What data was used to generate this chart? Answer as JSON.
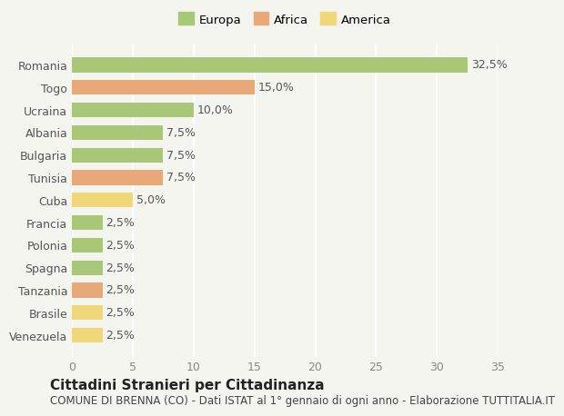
{
  "countries": [
    "Venezuela",
    "Brasile",
    "Tanzania",
    "Spagna",
    "Polonia",
    "Francia",
    "Cuba",
    "Tunisia",
    "Bulgaria",
    "Albania",
    "Ucraina",
    "Togo",
    "Romania"
  ],
  "values": [
    2.5,
    2.5,
    2.5,
    2.5,
    2.5,
    2.5,
    5.0,
    7.5,
    7.5,
    7.5,
    10.0,
    15.0,
    32.5
  ],
  "continents": [
    "America",
    "America",
    "Africa",
    "Europa",
    "Europa",
    "Europa",
    "America",
    "Africa",
    "Europa",
    "Europa",
    "Europa",
    "Africa",
    "Europa"
  ],
  "colors": {
    "Europa": "#a8c878",
    "Africa": "#e8a878",
    "America": "#f0d878"
  },
  "labels": [
    "2,5%",
    "2,5%",
    "2,5%",
    "2,5%",
    "2,5%",
    "2,5%",
    "5,0%",
    "7,5%",
    "7,5%",
    "7,5%",
    "10,0%",
    "15,0%",
    "32,5%"
  ],
  "xlim": [
    0,
    35
  ],
  "xticks": [
    0,
    5,
    10,
    15,
    20,
    25,
    30,
    35
  ],
  "title1": "Cittadini Stranieri per Cittadinanza",
  "title2": "COMUNE DI BRENNA (CO) - Dati ISTAT al 1° gennaio di ogni anno - Elaborazione TUTTITALIA.IT",
  "legend_labels": [
    "Europa",
    "Africa",
    "America"
  ],
  "background_color": "#f5f5f0",
  "bar_height": 0.65,
  "grid_color": "#ffffff",
  "label_fontsize": 9,
  "axis_label_fontsize": 9,
  "title1_fontsize": 11,
  "title2_fontsize": 8.5
}
